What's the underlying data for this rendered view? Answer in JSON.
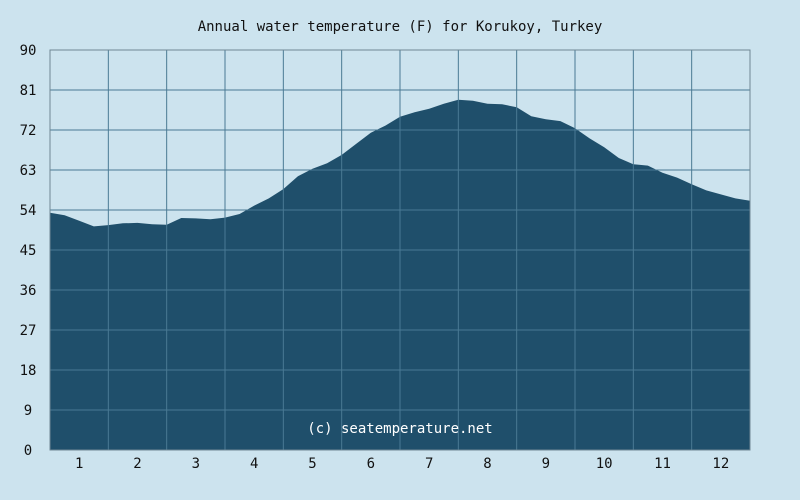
{
  "chart_data": {
    "type": "area",
    "title": "Annual water temperature (F) for Korukoy, Turkey",
    "annotation": "(c) seatemperature.net",
    "xlabel": "",
    "ylabel": "",
    "x_tick_labels": [
      "1",
      "2",
      "3",
      "4",
      "5",
      "6",
      "7",
      "8",
      "9",
      "10",
      "11",
      "12"
    ],
    "y_ticks": [
      0,
      9,
      18,
      27,
      36,
      45,
      54,
      63,
      72,
      81,
      90
    ],
    "ylim": [
      0,
      90
    ],
    "xlim": [
      0.5,
      12.5
    ],
    "grid": true,
    "series": [
      {
        "x": [
          0.5,
          0.75,
          1.0,
          1.25,
          1.5,
          1.75,
          2.0,
          2.25,
          2.5,
          2.75,
          3.0,
          3.25,
          3.5,
          3.75,
          4.0,
          4.25,
          4.5,
          4.75,
          5.0,
          5.25,
          5.5,
          5.75,
          6.0,
          6.25,
          6.5,
          6.75,
          7.0,
          7.25,
          7.5,
          7.75,
          8.0,
          8.25,
          8.5,
          8.75,
          9.0,
          9.25,
          9.5,
          9.75,
          10.0,
          10.25,
          10.5,
          10.75,
          11.0,
          11.25,
          11.5,
          11.75,
          12.0,
          12.25,
          12.5
        ],
        "y": [
          53.4,
          52.8,
          51.6,
          50.3,
          50.6,
          51.0,
          51.1,
          50.8,
          50.7,
          52.2,
          52.1,
          51.9,
          52.3,
          53.1,
          55.0,
          56.6,
          58.7,
          61.6,
          63.3,
          64.5,
          66.4,
          68.9,
          71.4,
          73.0,
          75.0,
          76.0,
          76.8,
          77.9,
          78.8,
          78.6,
          77.9,
          77.8,
          77.1,
          75.1,
          74.4,
          74.0,
          72.4,
          70.1,
          68.1,
          65.7,
          64.3,
          64.0,
          62.4,
          61.3,
          59.8,
          58.4,
          57.5,
          56.6,
          56.1
        ]
      }
    ],
    "colors": {
      "background": "#cce3ee",
      "area_fill": "#1f4f6b",
      "grid": "#4a7a94",
      "axis": "#6f8794",
      "text": "#111111",
      "watermark": "#ffffff"
    }
  }
}
